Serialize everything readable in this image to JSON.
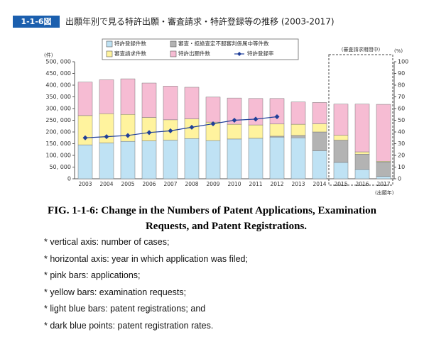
{
  "chart_data": {
    "type": "bar",
    "stacked": true,
    "figure_label": "1-1-6図",
    "title": "出願年別で見る特許出願・審査請求・特許登録等の推移 (2003-2017)",
    "y_unit": "(件)",
    "y2_unit": "(%)",
    "x_unit": "(出願年)",
    "annotation": "(審査請求期間中)",
    "categories": [
      "2003",
      "2004",
      "2005",
      "2006",
      "2007",
      "2008",
      "2009",
      "2010",
      "2011",
      "2012",
      "2013",
      "2014",
      "2015",
      "2016",
      "2017"
    ],
    "series": [
      {
        "name": "特許登録件数",
        "color": "#bfe2f4",
        "values": [
          145000,
          153000,
          160000,
          162000,
          165000,
          172000,
          163000,
          170000,
          173000,
          178000,
          175000,
          120000,
          70000,
          40000,
          10000
        ]
      },
      {
        "name": "審査・拒絶査定不服審判係属中等件数",
        "color": "#b3b3b3",
        "values": [
          0,
          0,
          0,
          0,
          0,
          0,
          0,
          0,
          0,
          4000,
          10000,
          80000,
          95000,
          65000,
          62000
        ]
      },
      {
        "name": "審査請求件数",
        "color": "#fff39e",
        "values": [
          125000,
          125000,
          115000,
          100000,
          87000,
          84000,
          79000,
          63000,
          57000,
          52000,
          48000,
          35000,
          21000,
          10000,
          3000
        ]
      },
      {
        "name": "特許出願件数",
        "color": "#f6bcd3",
        "values": [
          143000,
          145000,
          152000,
          147000,
          144000,
          135000,
          107000,
          112000,
          113000,
          109000,
          95000,
          91000,
          133000,
          204000,
          243000
        ]
      },
      {
        "name": "特許登録率",
        "color": "#1f3f99",
        "type": "line",
        "axis": "y2",
        "values": [
          35,
          36,
          37,
          39.5,
          41,
          44,
          47,
          50,
          51,
          53,
          null,
          null,
          null,
          null,
          null
        ]
      }
    ],
    "ylim": [
      0,
      500000
    ],
    "yticks": [
      {
        "value": 0,
        "label": "0"
      },
      {
        "value": 50000,
        "label": "50, 000"
      },
      {
        "value": 100000,
        "label": "100, 000"
      },
      {
        "value": 150000,
        "label": "150, 000"
      },
      {
        "value": 200000,
        "label": "200, 000"
      },
      {
        "value": 250000,
        "label": "250, 000"
      },
      {
        "value": 300000,
        "label": "300, 000"
      },
      {
        "value": 350000,
        "label": "350, 000"
      },
      {
        "value": 400000,
        "label": "400, 000"
      },
      {
        "value": 450000,
        "label": "450, 000"
      },
      {
        "value": 500000,
        "label": "500, 000"
      }
    ],
    "y2lim": [
      0,
      100
    ],
    "y2ticks": [
      0,
      10,
      20,
      30,
      40,
      50,
      60,
      70,
      80,
      90,
      100
    ]
  },
  "caption": [
    "FIG. 1-1-6: Change in the Numbers of Patent Applications, Examination",
    "Requests, and Patent Registrations."
  ],
  "notes": [
    "* vertical axis: number of cases;",
    "* horizontal axis: year in which application was filed;",
    "* pink bars: applications;",
    "* yellow bars: examination requests;",
    "* light blue bars: patent registrations; and",
    "* dark blue points: patent registration rates."
  ]
}
